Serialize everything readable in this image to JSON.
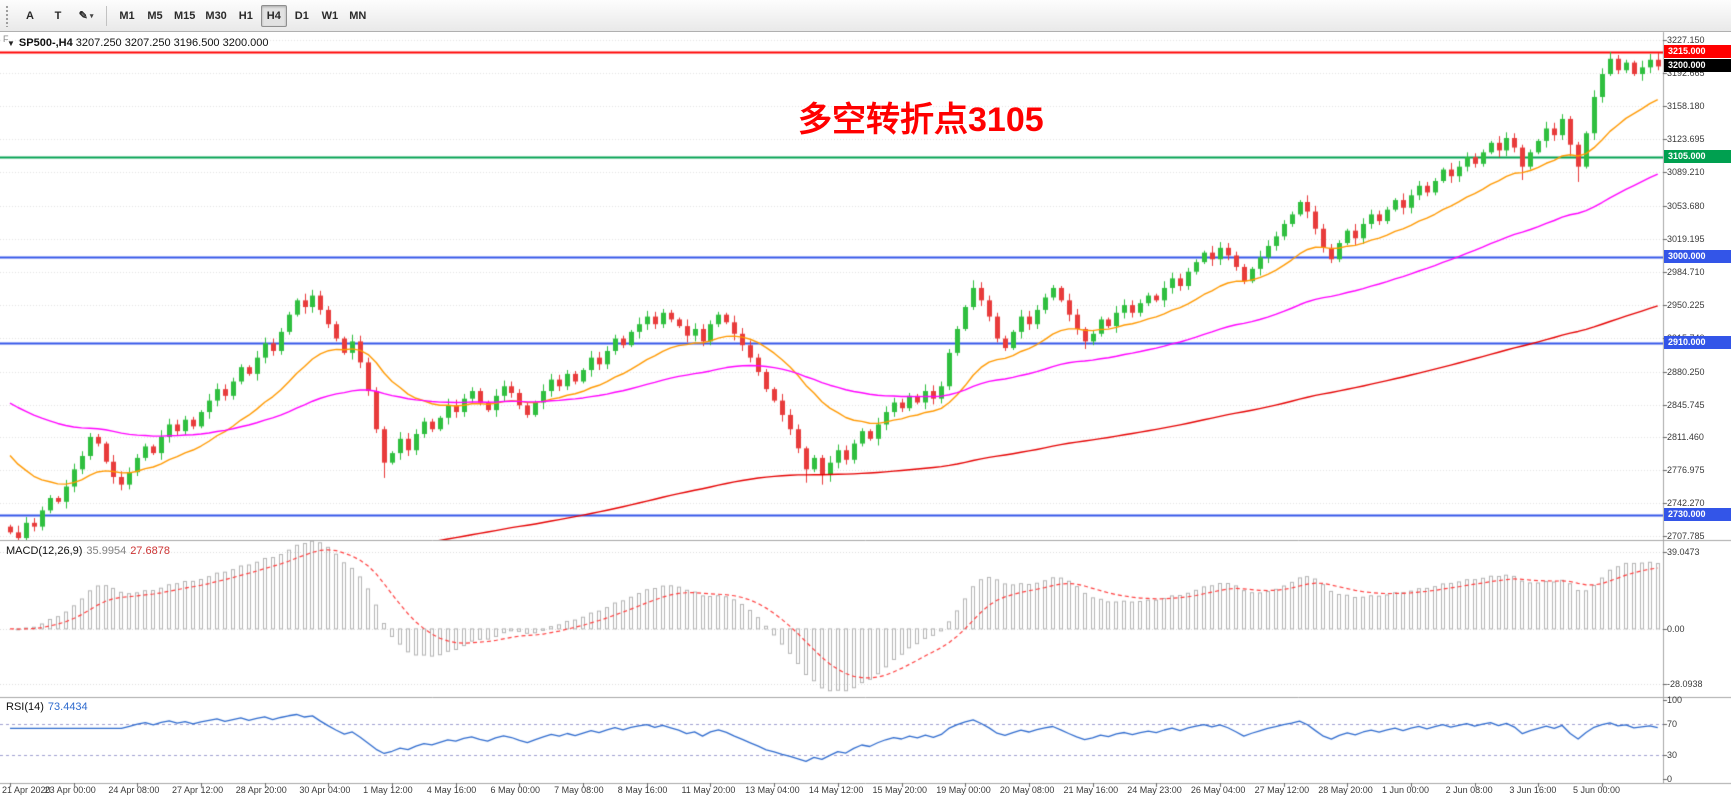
{
  "toolbar": {
    "left_label": "F",
    "icons": [
      {
        "name": "annotation-tool-icon",
        "glyph": "A"
      },
      {
        "name": "text-tool-icon",
        "glyph": "T"
      },
      {
        "name": "draw-tool-icon",
        "glyph": "✎",
        "caret": "▾"
      }
    ],
    "timeframes": [
      {
        "label": "M1",
        "active": false
      },
      {
        "label": "M5",
        "active": false
      },
      {
        "label": "M15",
        "active": false
      },
      {
        "label": "M30",
        "active": false
      },
      {
        "label": "H1",
        "active": false
      },
      {
        "label": "H4",
        "active": true
      },
      {
        "label": "D1",
        "active": false
      },
      {
        "label": "W1",
        "active": false
      },
      {
        "label": "MN",
        "active": false
      }
    ]
  },
  "chart": {
    "title": {
      "dropdown": "▼",
      "symbol_period": "SP500-,H4",
      "ohlc": "3207.250 3207.250 3196.500 3200.000"
    },
    "annotation": {
      "text": "多空转折点3105",
      "color": "#ff0000"
    },
    "price_axis_ticks": [
      "3227.150",
      "3192.665",
      "3158.180",
      "3123.695",
      "3089.210",
      "3053.680",
      "3019.195",
      "2984.710",
      "2950.225",
      "2915.740",
      "2880.250",
      "2845.745",
      "2811.460",
      "2776.975",
      "2742.270",
      "2707.785"
    ],
    "price_tags": [
      {
        "text": "3215.000",
        "bg": "#ff0000",
        "price": 3215.0
      },
      {
        "text": "3200.000",
        "bg": "#000000",
        "price": 3200.0
      },
      {
        "text": "3105.000",
        "bg": "#00a050",
        "price": 3105.0
      },
      {
        "text": "3000.000",
        "bg": "#3355e8",
        "price": 3000.0
      },
      {
        "text": "2910.000",
        "bg": "#3355e8",
        "price": 2910.0
      },
      {
        "text": "2730.000",
        "bg": "#3355e8",
        "price": 2730.0
      }
    ],
    "levels": [
      {
        "price": 3215.0,
        "color": "#ff0000",
        "width": 2
      },
      {
        "price": 3105.0,
        "color": "#00a050",
        "width": 2
      },
      {
        "price": 3000.0,
        "color": "#3355e8",
        "width": 2
      },
      {
        "price": 2910.0,
        "color": "#3355e8",
        "width": 2
      },
      {
        "price": 2730.0,
        "color": "#3355e8",
        "width": 2
      }
    ]
  },
  "chart_data": {
    "type": "candlestick",
    "symbol": "SP500-",
    "period": "H4",
    "price_range": [
      2704,
      3235
    ],
    "x_labels": [
      "21 Apr 2020",
      "23 Apr 00:00",
      "24 Apr 08:00",
      "27 Apr 12:00",
      "28 Apr 20:00",
      "30 Apr 04:00",
      "1 May 12:00",
      "4 May 16:00",
      "6 May 00:00",
      "7 May 08:00",
      "8 May 16:00",
      "11 May 20:00",
      "13 May 04:00",
      "14 May 12:00",
      "15 May 20:00",
      "19 May 00:00",
      "20 May 08:00",
      "21 May 16:00",
      "24 May 23:00",
      "26 May 04:00",
      "27 May 12:00",
      "28 May 20:00",
      "1 Jun 00:00",
      "2 Jun 08:00",
      "3 Jun 16:00",
      "5 Jun 00:00"
    ],
    "first_open": 2718,
    "closes": [
      2712,
      2706,
      2722,
      2718,
      2735,
      2748,
      2744,
      2760,
      2778,
      2792,
      2812,
      2805,
      2786,
      2770,
      2762,
      2775,
      2790,
      2802,
      2795,
      2812,
      2825,
      2818,
      2830,
      2823,
      2838,
      2850,
      2862,
      2855,
      2870,
      2885,
      2878,
      2895,
      2910,
      2902,
      2922,
      2940,
      2955,
      2948,
      2960,
      2945,
      2930,
      2915,
      2900,
      2912,
      2890,
      2860,
      2820,
      2785,
      2795,
      2810,
      2798,
      2815,
      2828,
      2820,
      2832,
      2845,
      2838,
      2852,
      2860,
      2848,
      2840,
      2855,
      2865,
      2858,
      2845,
      2835,
      2848,
      2860,
      2872,
      2865,
      2878,
      2870,
      2882,
      2895,
      2888,
      2902,
      2915,
      2908,
      2922,
      2930,
      2938,
      2930,
      2942,
      2935,
      2928,
      2918,
      2925,
      2912,
      2930,
      2940,
      2932,
      2920,
      2908,
      2895,
      2880,
      2862,
      2850,
      2835,
      2820,
      2800,
      2778,
      2790,
      2772,
      2785,
      2798,
      2788,
      2805,
      2818,
      2810,
      2825,
      2838,
      2848,
      2842,
      2855,
      2848,
      2860,
      2852,
      2865,
      2900,
      2925,
      2948,
      2968,
      2955,
      2938,
      2915,
      2905,
      2922,
      2938,
      2930,
      2945,
      2958,
      2968,
      2955,
      2940,
      2925,
      2912,
      2920,
      2935,
      2928,
      2942,
      2950,
      2942,
      2952,
      2960,
      2955,
      2968,
      2978,
      2970,
      2985,
      2995,
      3005,
      2998,
      3010,
      3002,
      2990,
      2975,
      2988,
      3000,
      3012,
      3022,
      3035,
      3045,
      3058,
      3048,
      3030,
      3010,
      2998,
      3015,
      3028,
      3020,
      3035,
      3045,
      3038,
      3050,
      3060,
      3052,
      3065,
      3075,
      3068,
      3080,
      3092,
      3085,
      3095,
      3105,
      3098,
      3110,
      3120,
      3112,
      3125,
      3115,
      3095,
      3110,
      3122,
      3135,
      3128,
      3145,
      3118,
      3095,
      3130,
      3168,
      3192,
      3208,
      3196,
      3204,
      3192,
      3199,
      3207,
      3200
    ],
    "wick_overrides": {
      "47": [
        3,
        16
      ],
      "100": [
        2,
        14
      ],
      "102": [
        3,
        10
      ],
      "121": [
        8,
        3
      ],
      "135": [
        2,
        8
      ],
      "190": [
        3,
        14
      ],
      "196": [
        3,
        12
      ],
      "197": [
        3,
        16
      ],
      "201": [
        7,
        2
      ],
      "207": [
        7,
        4
      ]
    },
    "last_bar": {
      "open": 3207.25,
      "high": 3207.25,
      "low": 3196.5,
      "close": 3200.0
    },
    "up_color": "#2fbf3f",
    "down_color": "#e83b3b",
    "moving_averages": [
      {
        "name": "ma-fast",
        "color": "#ff9900",
        "period": 18,
        "seed": 2802
      },
      {
        "name": "ma-mid",
        "color": "#ff00ff",
        "period": 60,
        "seed": 2852
      },
      {
        "name": "ma-slow",
        "color": "#e50000",
        "period": 190,
        "seed": 2598
      }
    ],
    "macd": {
      "label": "MACD(12,26,9)",
      "main_value": "35.9954",
      "signal_value": "27.6878",
      "axis_ticks": [
        "39.0473",
        "0.00",
        "-28.0938"
      ],
      "range": [
        -32,
        42
      ],
      "fast": 12,
      "slow": 26,
      "signal": 9,
      "hist_color": "#b4b4b4",
      "signal_color": "#ff4040"
    },
    "rsi": {
      "label": "RSI(14)",
      "value": "73.4434",
      "axis_ticks": [
        "100",
        "70",
        "30",
        "0"
      ],
      "levels": [
        70,
        30
      ],
      "range": [
        0,
        100
      ],
      "period": 14,
      "color": "#2f6bce"
    }
  }
}
